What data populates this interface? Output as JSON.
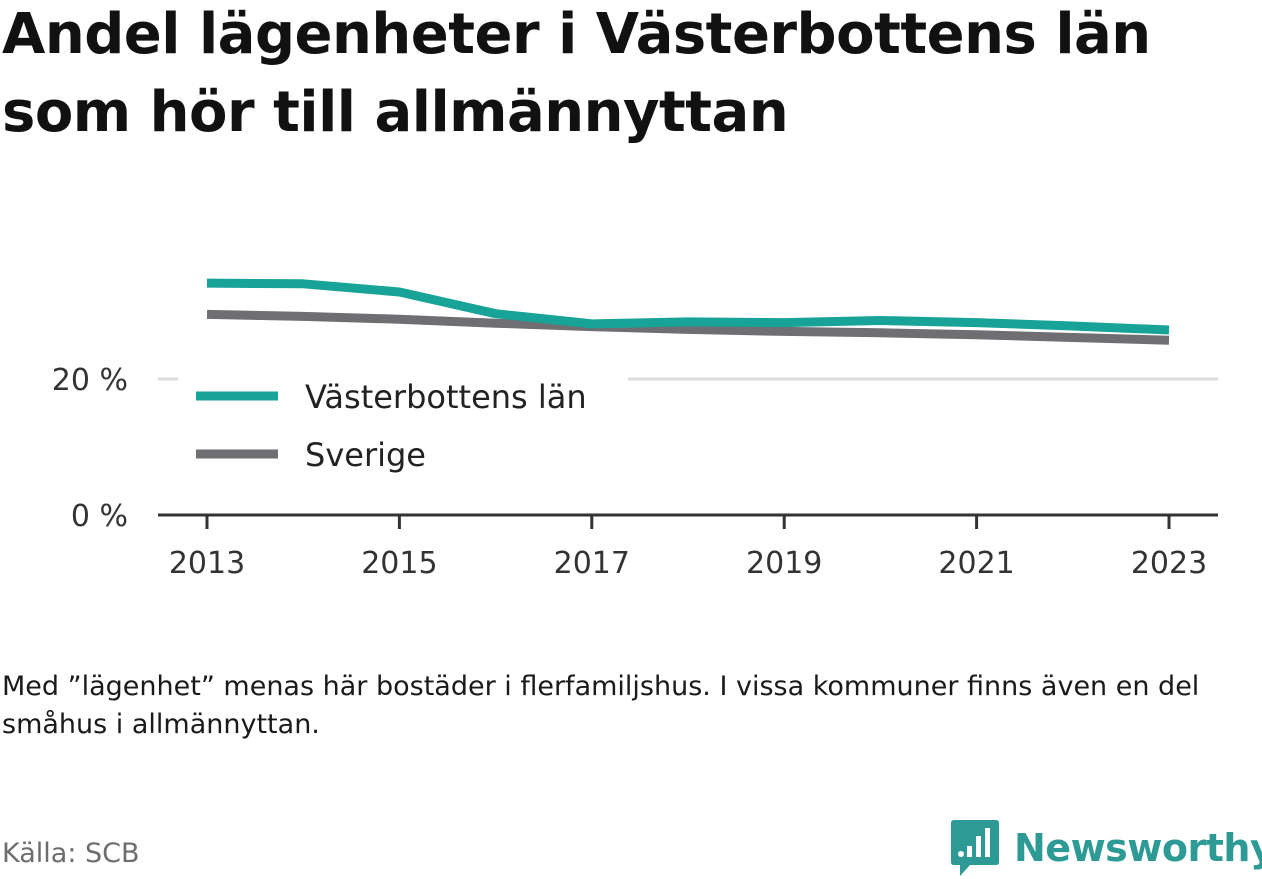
{
  "title": "Andel lägenheter i Västerbottens län som hör till allmännyttan",
  "note": "Med ”lägenhet” menas här bostäder i flerfamiljshus. I vissa kommuner finns även en del småhus i allmännyttan.",
  "source": "Källa: SCB",
  "brand": {
    "name": "Newsworthy",
    "icon": "newsworthy-logo-icon",
    "color": "#2e9a95"
  },
  "chart_data": {
    "type": "line",
    "x": [
      2013,
      2014,
      2015,
      2016,
      2017,
      2018,
      2019,
      2020,
      2021,
      2022,
      2023
    ],
    "x_ticks": [
      "2013",
      "2015",
      "2017",
      "2019",
      "2021",
      "2023"
    ],
    "y_ticks": [
      "0 %",
      "20 %"
    ],
    "ylim": [
      0,
      34
    ],
    "grid": "horizontal",
    "legend_position": "left, inside plot",
    "series": [
      {
        "name": "Västerbottens län",
        "color": "#17a397",
        "values": [
          34.1,
          34.0,
          32.8,
          29.6,
          28.1,
          28.4,
          28.3,
          28.6,
          28.3,
          27.8,
          27.2
        ]
      },
      {
        "name": "Sverige",
        "color": "#6e6e73",
        "values": [
          29.5,
          29.2,
          28.8,
          28.2,
          27.7,
          27.3,
          27.0,
          26.8,
          26.5,
          26.1,
          25.7
        ]
      }
    ]
  }
}
